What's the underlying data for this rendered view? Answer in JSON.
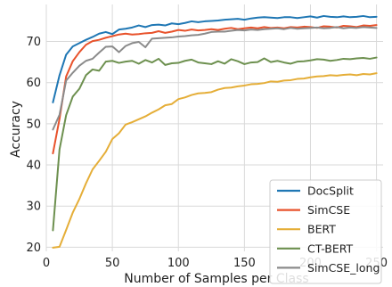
{
  "chart_data": {
    "type": "line",
    "xlabel": "Number of Samples per Class",
    "ylabel": "Accuracy",
    "xlim": [
      0,
      255
    ],
    "ylim": [
      19,
      79
    ],
    "xticks": [
      0,
      50,
      100,
      150,
      200,
      250
    ],
    "yticks": [
      20,
      30,
      40,
      50,
      60,
      70
    ],
    "grid": true,
    "legend_position": "lower-right",
    "x": [
      5,
      10,
      15,
      20,
      25,
      30,
      35,
      40,
      45,
      50,
      55,
      60,
      65,
      70,
      75,
      80,
      85,
      90,
      95,
      100,
      105,
      110,
      115,
      120,
      125,
      130,
      135,
      140,
      145,
      150,
      155,
      160,
      165,
      170,
      175,
      180,
      185,
      190,
      195,
      200,
      205,
      210,
      215,
      220,
      225,
      230,
      235,
      240,
      245,
      250
    ],
    "series": [
      {
        "name": "DocSplit",
        "color": "#1f77b4",
        "values": [
          55.2,
          61.8,
          66.8,
          68.8,
          69.6,
          70.4,
          71.1,
          71.9,
          72.3,
          71.8,
          72.9,
          73.1,
          73.4,
          73.9,
          73.5,
          74.0,
          74.1,
          73.9,
          74.4,
          74.2,
          74.5,
          74.9,
          74.7,
          74.9,
          75.0,
          75.1,
          75.3,
          75.4,
          75.5,
          75.3,
          75.6,
          75.8,
          75.9,
          75.8,
          75.7,
          75.9,
          75.9,
          75.7,
          75.9,
          76.1,
          75.8,
          76.2,
          76.0,
          75.9,
          76.1,
          75.9,
          76.0,
          76.2,
          75.9,
          76.0
        ]
      },
      {
        "name": "SimCSE",
        "color": "#e8522b",
        "values": [
          42.8,
          51.2,
          61.5,
          65.2,
          67.4,
          69.2,
          70.1,
          70.4,
          70.9,
          71.3,
          71.7,
          71.9,
          71.7,
          71.8,
          72.0,
          72.1,
          72.5,
          72.1,
          72.4,
          72.8,
          72.6,
          72.9,
          72.7,
          72.8,
          73.0,
          72.8,
          73.1,
          73.3,
          73.0,
          73.2,
          73.4,
          73.2,
          73.5,
          73.3,
          73.4,
          73.2,
          73.5,
          73.4,
          73.6,
          73.5,
          73.3,
          73.7,
          73.6,
          73.4,
          73.8,
          73.7,
          73.5,
          73.9,
          73.8,
          74.0
        ]
      },
      {
        "name": "BERT",
        "color": "#e5ae38",
        "values": [
          19.9,
          20.1,
          24.2,
          28.4,
          31.7,
          35.5,
          38.9,
          41.0,
          43.2,
          46.3,
          47.7,
          49.8,
          50.4,
          51.1,
          51.8,
          52.7,
          53.5,
          54.5,
          54.8,
          56.0,
          56.4,
          57.0,
          57.4,
          57.5,
          57.7,
          58.3,
          58.7,
          58.8,
          59.1,
          59.3,
          59.6,
          59.7,
          59.9,
          60.3,
          60.2,
          60.5,
          60.6,
          60.9,
          61.0,
          61.3,
          61.5,
          61.6,
          61.8,
          61.7,
          61.9,
          62.0,
          61.8,
          62.1,
          62.0,
          62.3
        ]
      },
      {
        "name": "CT-BERT",
        "color": "#6d904f",
        "values": [
          24.1,
          43.8,
          52.1,
          56.6,
          58.5,
          61.8,
          63.2,
          62.9,
          65.1,
          65.3,
          64.8,
          65.1,
          65.3,
          64.6,
          65.5,
          64.9,
          65.8,
          64.3,
          64.7,
          64.8,
          65.3,
          65.6,
          64.9,
          64.7,
          64.5,
          65.2,
          64.6,
          65.7,
          65.2,
          64.5,
          64.9,
          65.0,
          65.9,
          65.0,
          65.3,
          64.9,
          64.6,
          65.1,
          65.2,
          65.4,
          65.7,
          65.6,
          65.3,
          65.5,
          65.8,
          65.7,
          65.9,
          66.0,
          65.8,
          66.1
        ]
      },
      {
        "name": "SimCSE_long",
        "color": "#8b8b8b",
        "values": [
          48.6,
          52.2,
          60.5,
          62.4,
          64.1,
          65.3,
          65.8,
          67.3,
          68.7,
          68.8,
          67.4,
          68.9,
          69.6,
          69.9,
          68.6,
          70.7,
          70.8,
          70.9,
          71.0,
          71.2,
          71.3,
          71.5,
          71.6,
          71.9,
          72.3,
          72.4,
          72.4,
          72.6,
          72.8,
          72.7,
          72.9,
          72.8,
          73.0,
          73.1,
          73.2,
          73.0,
          73.3,
          73.1,
          73.2,
          73.3,
          73.4,
          73.2,
          73.3,
          73.5,
          73.2,
          73.4,
          73.3,
          73.5,
          73.4,
          73.3
        ]
      }
    ]
  }
}
